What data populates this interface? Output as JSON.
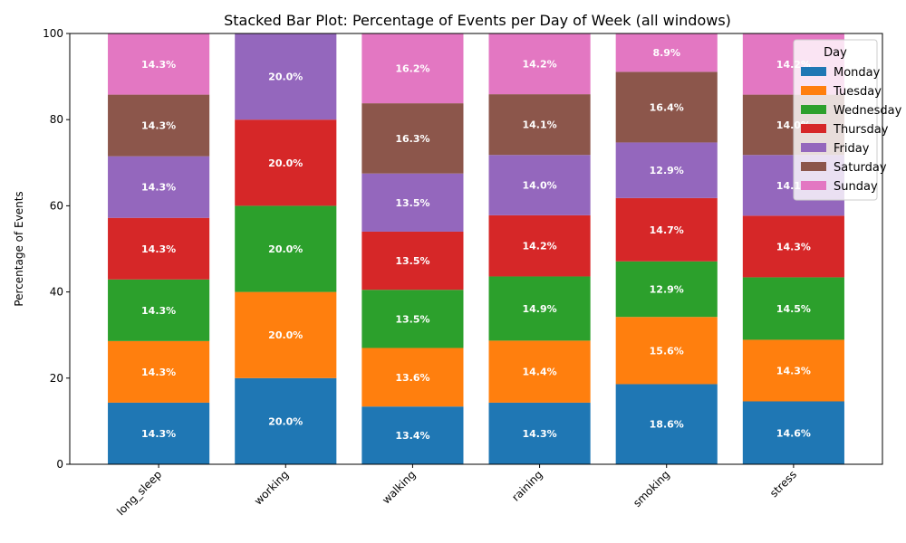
{
  "chart_data": {
    "type": "bar",
    "stacked": true,
    "title": "Stacked Bar Plot: Percentage of Events per Day of Week (all windows)",
    "xlabel": "",
    "ylabel": "Percentage of Events",
    "ylim": [
      0,
      100
    ],
    "yticks": [
      0,
      20,
      40,
      60,
      80,
      100
    ],
    "categories": [
      "long_sleep",
      "working",
      "walking",
      "raining",
      "smoking",
      "stress"
    ],
    "legend": {
      "title": "Day",
      "position": "top-right"
    },
    "series": [
      {
        "name": "Monday",
        "color": "#1f77b4",
        "values": [
          14.3,
          20.0,
          13.4,
          14.3,
          18.6,
          14.6
        ]
      },
      {
        "name": "Tuesday",
        "color": "#ff7f0e",
        "values": [
          14.3,
          20.0,
          13.6,
          14.4,
          15.6,
          14.3
        ]
      },
      {
        "name": "Wednesday",
        "color": "#2ca02c",
        "values": [
          14.3,
          20.0,
          13.5,
          14.9,
          12.9,
          14.5
        ]
      },
      {
        "name": "Thursday",
        "color": "#d62728",
        "values": [
          14.3,
          20.0,
          13.5,
          14.2,
          14.7,
          14.3
        ]
      },
      {
        "name": "Friday",
        "color": "#9467bd",
        "values": [
          14.3,
          20.0,
          13.5,
          14.0,
          12.9,
          14.1
        ]
      },
      {
        "name": "Saturday",
        "color": "#8c564b",
        "values": [
          14.3,
          0.0,
          16.3,
          14.1,
          16.4,
          14.0
        ]
      },
      {
        "name": "Sunday",
        "color": "#e377c2",
        "values": [
          14.3,
          0.0,
          16.2,
          14.2,
          8.9,
          14.2
        ]
      }
    ],
    "data_labels": [
      [
        "14.3%",
        "14.3%",
        "14.3%",
        "14.3%",
        "14.3%",
        "14.3%",
        "14.3%"
      ],
      [
        "20.0%",
        "20.0%",
        "20.0%",
        "20.0%",
        "20.0%",
        "",
        ""
      ],
      [
        "13.4%",
        "13.6%",
        "13.5%",
        "13.5%",
        "13.5%",
        "16.3%",
        "16.2%"
      ],
      [
        "14.3%",
        "14.4%",
        "14.9%",
        "14.2%",
        "14.0%",
        "14.1%",
        "14.2%"
      ],
      [
        "18.6%",
        "15.6%",
        "12.9%",
        "14.7%",
        "12.9%",
        "16.4%",
        "8.9%"
      ],
      [
        "14.6%",
        "14.3%",
        "14.5%",
        "14.3%",
        "14.1%",
        "14.0%",
        "14.2%"
      ]
    ]
  }
}
